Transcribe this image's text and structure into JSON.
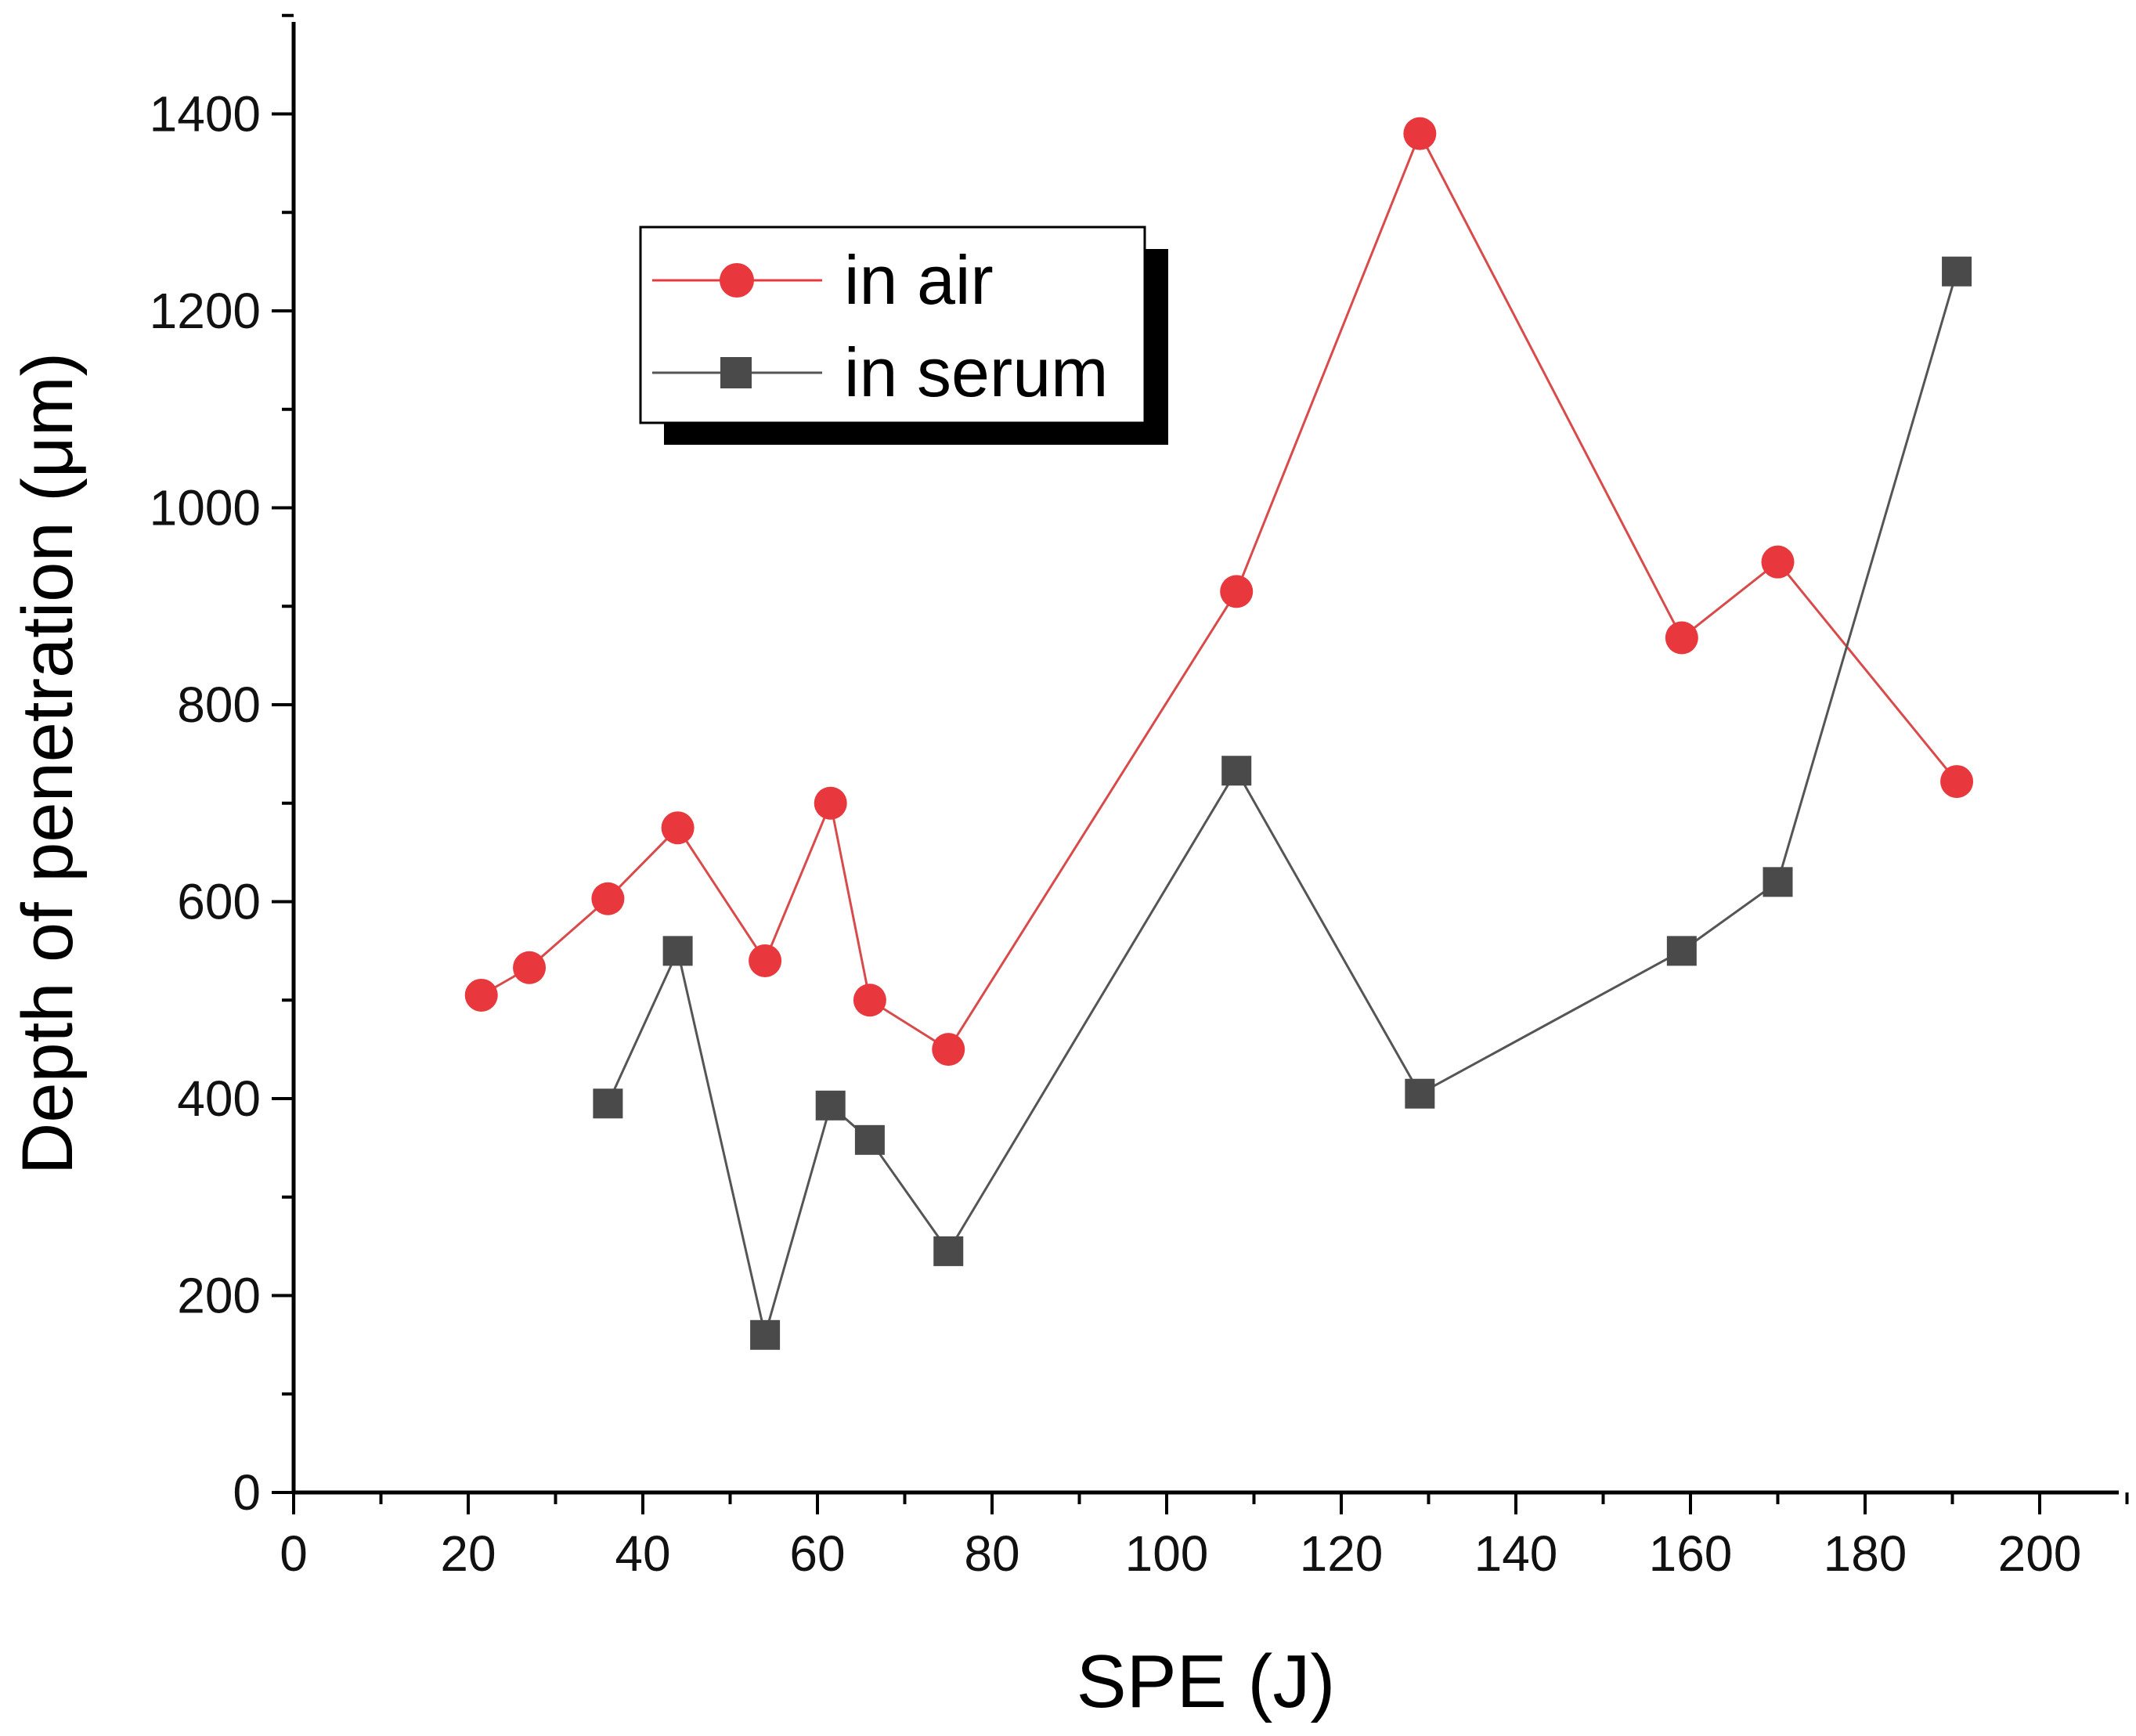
{
  "chart_data": {
    "type": "line",
    "title": "",
    "xlabel": "SPE (J)",
    "ylabel": "Depth of penetration (μm)",
    "xlim": [
      0,
      210
    ],
    "ylim": [
      0,
      1500
    ],
    "x_ticks": [
      0,
      20,
      40,
      60,
      80,
      100,
      120,
      140,
      160,
      180,
      200
    ],
    "y_ticks": [
      0,
      200,
      400,
      600,
      800,
      1000,
      1200,
      1400
    ],
    "grid": false,
    "legend_position": "top-left",
    "series": [
      {
        "name": "in air",
        "marker": "circle",
        "color": "#e8383d",
        "x": [
          21.5,
          27,
          36,
          44,
          54,
          61.5,
          66,
          75,
          108,
          129,
          159,
          170,
          190.5
        ],
        "y": [
          505,
          533,
          603,
          675,
          540,
          700,
          500,
          450,
          915,
          1380,
          868,
          945,
          722
        ]
      },
      {
        "name": "in serum",
        "marker": "square",
        "color": "#4a4a4a",
        "x": [
          36,
          44,
          54,
          61.5,
          66,
          75,
          108,
          129,
          159,
          170,
          190.5
        ],
        "y": [
          395,
          550,
          160,
          393,
          358,
          245,
          733,
          405,
          550,
          620,
          1240
        ]
      }
    ]
  }
}
